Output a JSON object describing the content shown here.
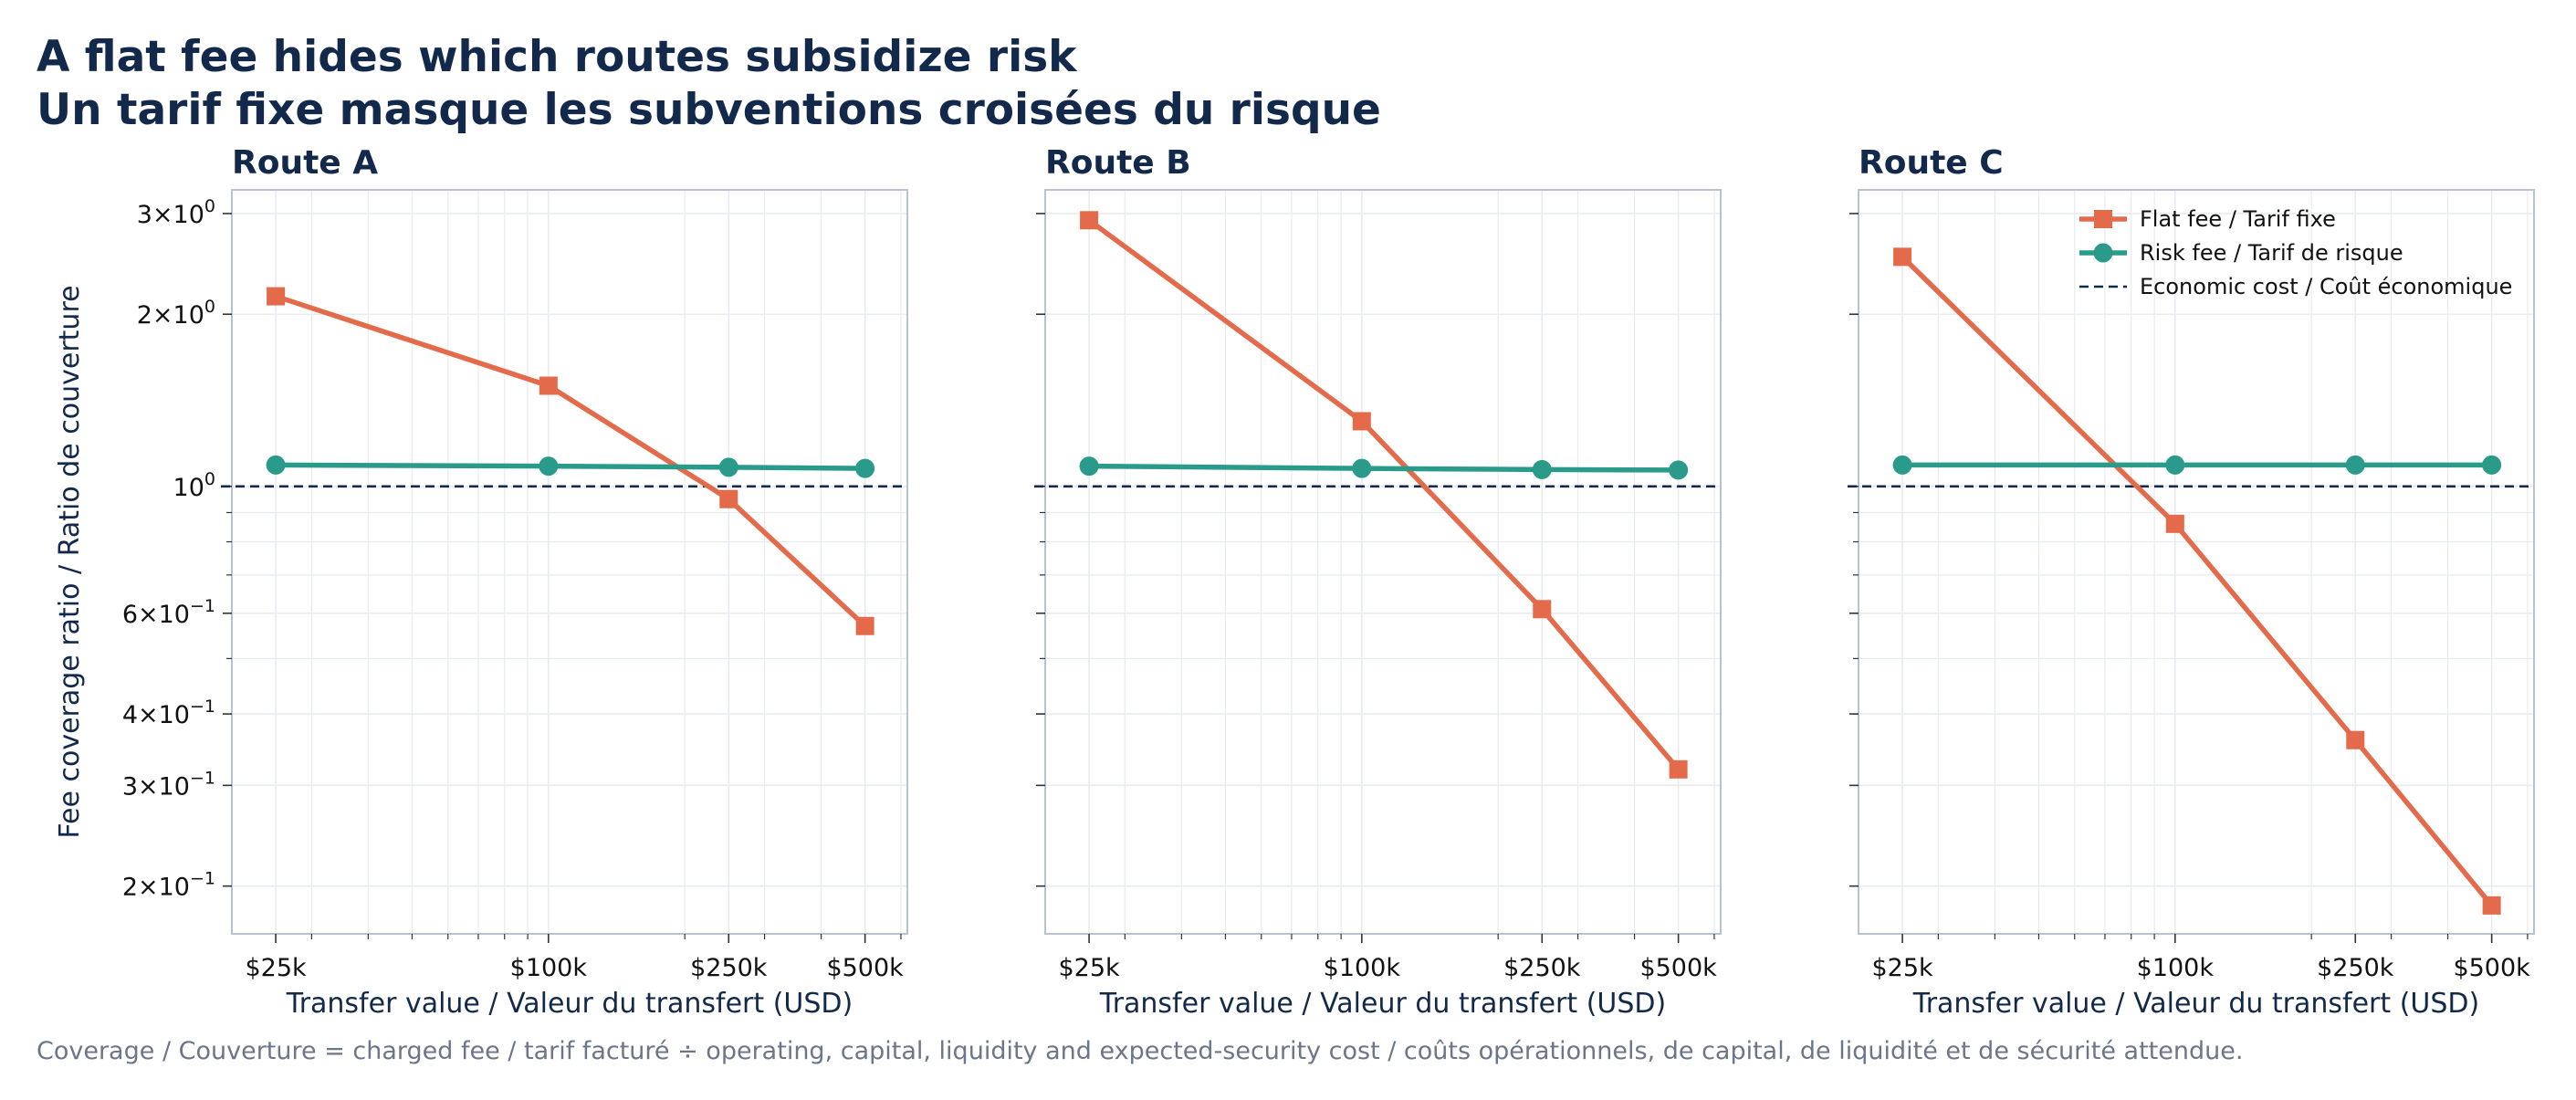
{
  "header": {
    "title_en": "A flat fee hides which routes subsidize risk",
    "title_fr": "Un tarif fixe masque les subventions croisées du risque"
  },
  "caption": "Coverage / Couverture = charged fee / tarif facturé ÷ operating, capital, liquidity and expected-security cost / coûts opérationnels, de capital, de liquidité et de sécurité attendue.",
  "colors": {
    "flat": "#e36b4b",
    "risk": "#2a9a8b",
    "economic": "#13294b",
    "title": "#13294b",
    "grid": "#e8ebf0",
    "frame": "#b8c2d1"
  },
  "chart_data": {
    "type": "line",
    "x_scale": "log",
    "y_scale": "log",
    "x": [
      25000,
      100000,
      250000,
      500000
    ],
    "x_tick_labels": [
      "$25k",
      "$100k",
      "$250k",
      "$500k"
    ],
    "xlabel": "Transfer value / Valeur du transfert (USD)",
    "ylabel": "Fee coverage ratio / Ratio de couverture",
    "ylim": [
      0.165,
      3.3
    ],
    "y_ticks": [
      {
        "value": 3,
        "mantissa": "3",
        "exp": "0"
      },
      {
        "value": 2,
        "mantissa": "2",
        "exp": "0"
      },
      {
        "value": 1,
        "mantissa": "",
        "exp": "0"
      },
      {
        "value": 0.6,
        "mantissa": "6",
        "exp": "−1"
      },
      {
        "value": 0.4,
        "mantissa": "4",
        "exp": "−1"
      },
      {
        "value": 0.3,
        "mantissa": "3",
        "exp": "−1"
      },
      {
        "value": 0.2,
        "mantissa": "2",
        "exp": "−1"
      }
    ],
    "reference_line": {
      "y": 1.0,
      "name": "Economic cost / Coût économique"
    },
    "legend": {
      "placement": "top-right of Route C",
      "entries": [
        "Flat fee / Tarif fixe",
        "Risk fee / Tarif de risque",
        "Economic cost / Coût économique"
      ]
    },
    "grid": true,
    "panels": [
      {
        "title": "Route A",
        "series": [
          {
            "name": "Flat fee / Tarif fixe",
            "values": [
              2.15,
              1.5,
              0.95,
              0.57
            ]
          },
          {
            "name": "Risk fee / Tarif de risque",
            "values": [
              1.09,
              1.085,
              1.08,
              1.075
            ]
          }
        ]
      },
      {
        "title": "Route B",
        "series": [
          {
            "name": "Flat fee / Tarif fixe",
            "values": [
              2.92,
              1.3,
              0.61,
              0.32
            ]
          },
          {
            "name": "Risk fee / Tarif de risque",
            "values": [
              1.085,
              1.075,
              1.07,
              1.068
            ]
          }
        ]
      },
      {
        "title": "Route C",
        "series": [
          {
            "name": "Flat fee / Tarif fixe",
            "values": [
              2.52,
              0.86,
              0.36,
              0.185
            ]
          },
          {
            "name": "Risk fee / Tarif de risque",
            "values": [
              1.09,
              1.09,
              1.09,
              1.09
            ]
          }
        ]
      }
    ]
  }
}
